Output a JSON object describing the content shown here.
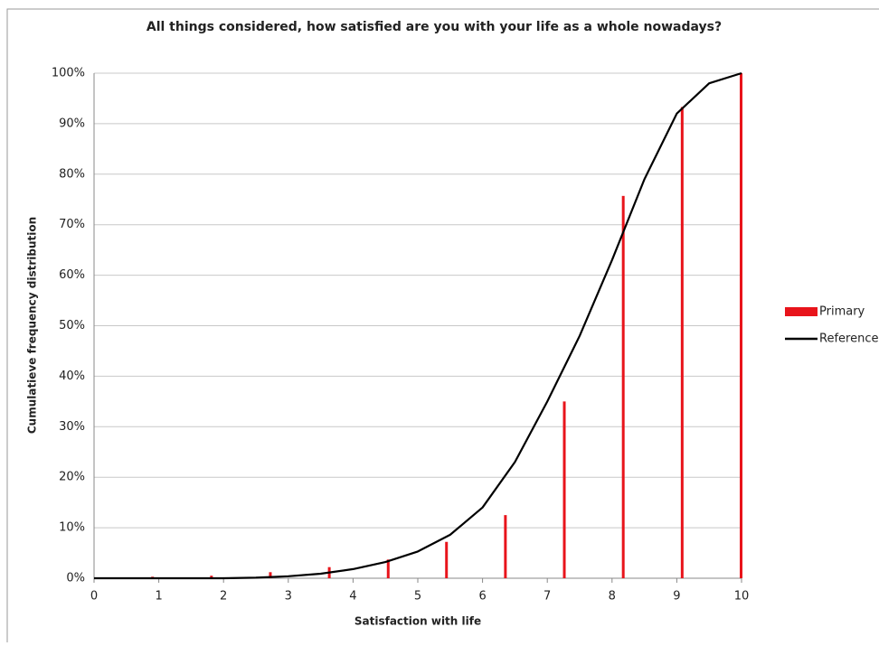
{
  "chart_data": {
    "type": "bar-line",
    "title": "All things considered, how satisfied are you with your life as a whole nowadays?",
    "xlabel": "Satisfaction with life",
    "ylabel": "Cumulatieve frequency distribution",
    "xlim": [
      0,
      10
    ],
    "xticks": [
      0,
      1,
      2,
      3,
      4,
      5,
      6,
      7,
      8,
      9,
      10
    ],
    "ylim": [
      0,
      100
    ],
    "yticks": [
      {
        "value": 0,
        "label": "0%"
      },
      {
        "value": 10,
        "label": "10%"
      },
      {
        "value": 20,
        "label": "20%"
      },
      {
        "value": 30,
        "label": "30%"
      },
      {
        "value": 40,
        "label": "40%"
      },
      {
        "value": 50,
        "label": "50%"
      },
      {
        "value": 60,
        "label": "60%"
      },
      {
        "value": 70,
        "label": "70%"
      },
      {
        "value": 80,
        "label": "80%"
      },
      {
        "value": 90,
        "label": "90%"
      },
      {
        "value": 100,
        "label": "100%"
      }
    ],
    "grid": true,
    "legend": "right",
    "series": [
      {
        "name": "Primary",
        "type": "bar",
        "color": "#e8141b",
        "x": [
          0.91,
          1.82,
          2.73,
          3.64,
          4.55,
          5.45,
          6.36,
          7.27,
          8.18,
          9.09,
          10
        ],
        "values": [
          0.3,
          0.5,
          1.2,
          2.2,
          3.7,
          7.2,
          12.5,
          35,
          75.7,
          93.3,
          100
        ]
      },
      {
        "name": "Reference",
        "type": "line",
        "color": "#000000",
        "x": [
          0,
          1,
          2,
          2.5,
          3,
          3.5,
          4,
          4.5,
          5,
          5.5,
          6,
          6.5,
          7,
          7.5,
          8,
          8.5,
          9,
          9.5,
          10
        ],
        "values": [
          0,
          0,
          0,
          0.1,
          0.4,
          0.9,
          1.8,
          3.2,
          5.3,
          8.6,
          14,
          23,
          35,
          48,
          63,
          79,
          92,
          98,
          100
        ]
      }
    ]
  }
}
